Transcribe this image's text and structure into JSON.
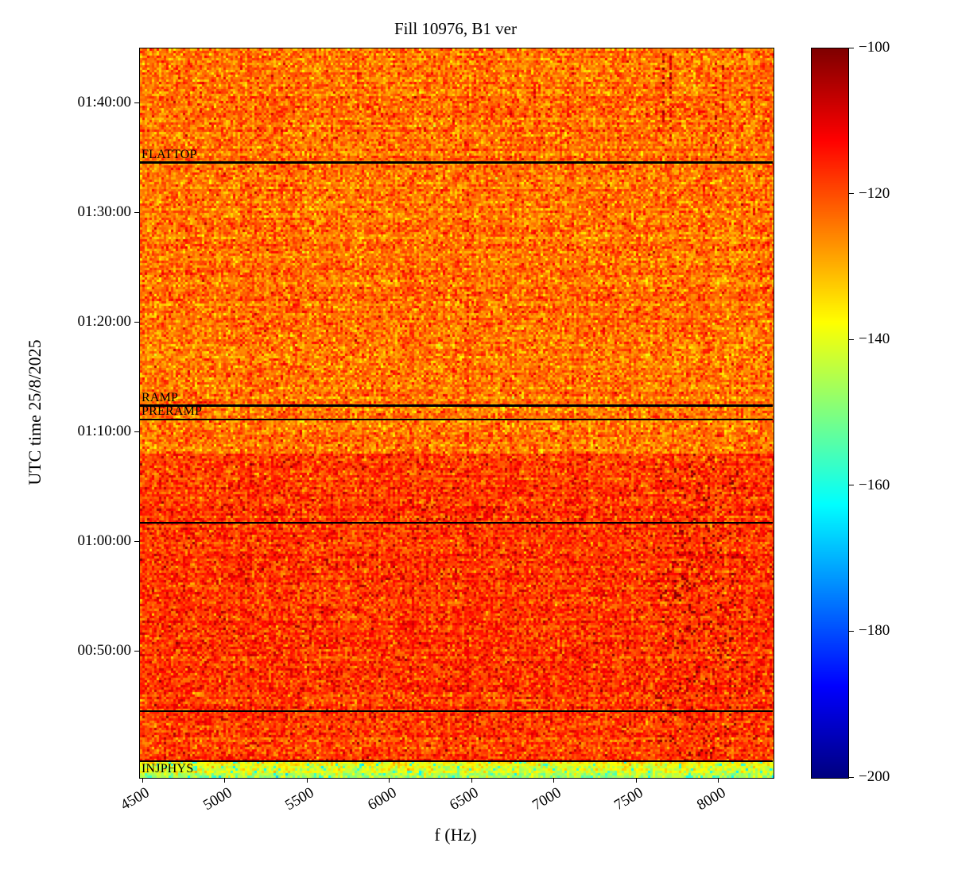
{
  "chart_data": {
    "type": "heatmap",
    "title": "Fill 10976, B1 ver",
    "xlabel": "f (Hz)",
    "ylabel": "UTC time 25/8/2025",
    "colormap": "jet",
    "clim": [
      -200,
      -100
    ],
    "xlim": [
      4480,
      8330
    ],
    "xticks": [
      4500,
      5000,
      5500,
      6000,
      6500,
      7000,
      7500,
      8000
    ],
    "time_range": {
      "top": "01:45:00",
      "bottom": "00:38:30"
    },
    "yticks": [
      "01:40:00",
      "01:30:00",
      "01:20:00",
      "01:10:00",
      "01:00:00",
      "00:50:00"
    ],
    "grid": false,
    "legend": "none",
    "colorbar": {
      "position": "right",
      "ticks": [
        {
          "value": -100,
          "label": "−100"
        },
        {
          "value": -120,
          "label": "−120"
        },
        {
          "value": -140,
          "label": "−140"
        },
        {
          "value": -160,
          "label": "−160"
        },
        {
          "value": -180,
          "label": "−180"
        },
        {
          "value": -200,
          "label": "−200"
        }
      ]
    },
    "annotations": [
      {
        "label": "FLATTOP",
        "time": "01:34:30",
        "lw": 3,
        "label_position": "above"
      },
      {
        "label": "RAMP",
        "time": "01:12:20",
        "lw": 3,
        "label_position": "above"
      },
      {
        "label": "PRERAMP",
        "time": "01:11:05",
        "lw": 2,
        "label_position": "above"
      },
      {
        "label": "",
        "time": "01:01:40",
        "lw": 2,
        "label_position": "above"
      },
      {
        "label": "",
        "time": "00:44:30",
        "lw": 2,
        "label_position": "above"
      },
      {
        "label": "INJPHYS",
        "time": "00:39:55",
        "lw": 2,
        "label_position": "below"
      }
    ],
    "noise_regions": [
      {
        "name": "flattop-and-ramp",
        "from": "01:08:00",
        "to": "01:45:00",
        "mean": -124,
        "sd": 5.2,
        "speck": {
          "value": -109,
          "p": 0.004
        }
      },
      {
        "name": "injection-plateau",
        "from": "00:40:00",
        "to": "01:08:00",
        "mean": -118,
        "sd": 5.0,
        "speck": {
          "value": -106,
          "p": 0.018
        }
      },
      {
        "name": "injphys-band",
        "from": "00:38:30",
        "to": "00:40:00",
        "mean": -135,
        "sd": 4.5,
        "gradient_to": -147,
        "speck": {
          "value": -160,
          "p": 0.06
        }
      }
    ],
    "hot_cluster": {
      "f_from": 7620,
      "f_to": 8120,
      "from": "00:40:30",
      "to": "01:07:30",
      "p": 0.06,
      "value": -102,
      "spread": 4
    },
    "top_streaks": {
      "f_list": [
        7660,
        7705,
        7980,
        8025
      ],
      "from": "01:35:00",
      "to": "01:44:30",
      "halfwidth": 7,
      "p": 0.4,
      "value": -110,
      "spread": 5
    },
    "faint_columns": [
      {
        "f": 6470,
        "halfwidth": 8,
        "delta": 3.0,
        "p": 0.6
      },
      {
        "f": 7110,
        "halfwidth": 5,
        "delta": 2.5,
        "p": 0.5
      },
      {
        "f": 8140,
        "halfwidth": 6,
        "delta": 4.0,
        "p": 0.5
      }
    ]
  }
}
